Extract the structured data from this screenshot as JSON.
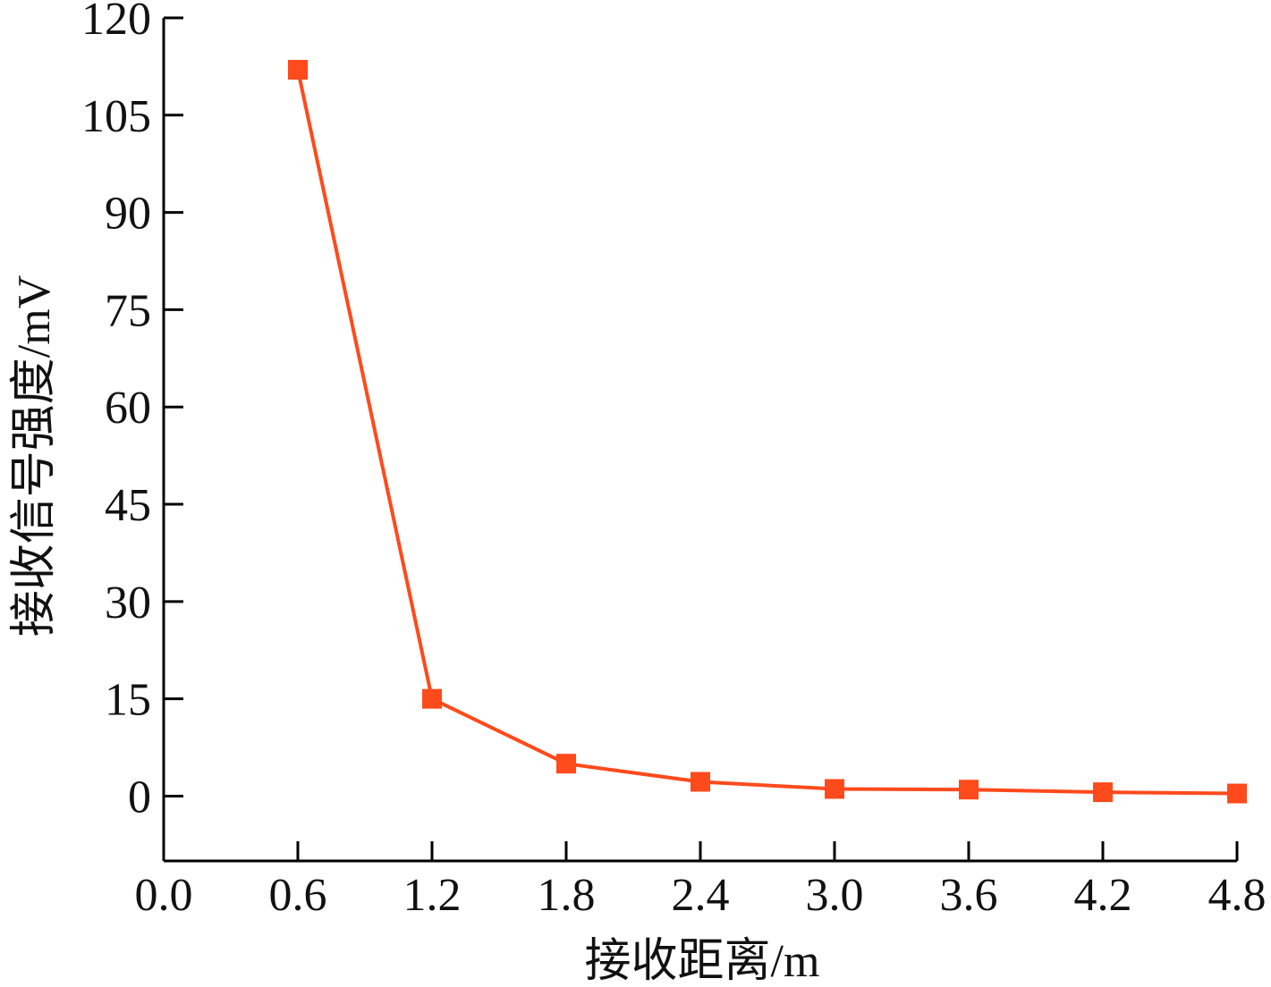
{
  "chart_data": {
    "type": "line",
    "xlabel": "接收距离/m",
    "ylabel": "接收信号强度/mV",
    "xlim": [
      0.0,
      4.8
    ],
    "ylim": [
      -10,
      120
    ],
    "x_ticks": [
      "0.0",
      "0.6",
      "1.2",
      "1.8",
      "2.4",
      "3.0",
      "3.6",
      "4.2",
      "4.8"
    ],
    "y_ticks": [
      "0",
      "15",
      "30",
      "45",
      "60",
      "75",
      "90",
      "105",
      "120"
    ],
    "grid": false,
    "series": [
      {
        "x": [
          0.6,
          1.2,
          1.8,
          2.4,
          3.0,
          3.6,
          4.2,
          4.8
        ],
        "y": [
          112,
          15,
          5,
          2.2,
          1.1,
          1.0,
          0.6,
          0.4
        ],
        "color": "#ff4a1c",
        "marker": "square"
      }
    ]
  }
}
